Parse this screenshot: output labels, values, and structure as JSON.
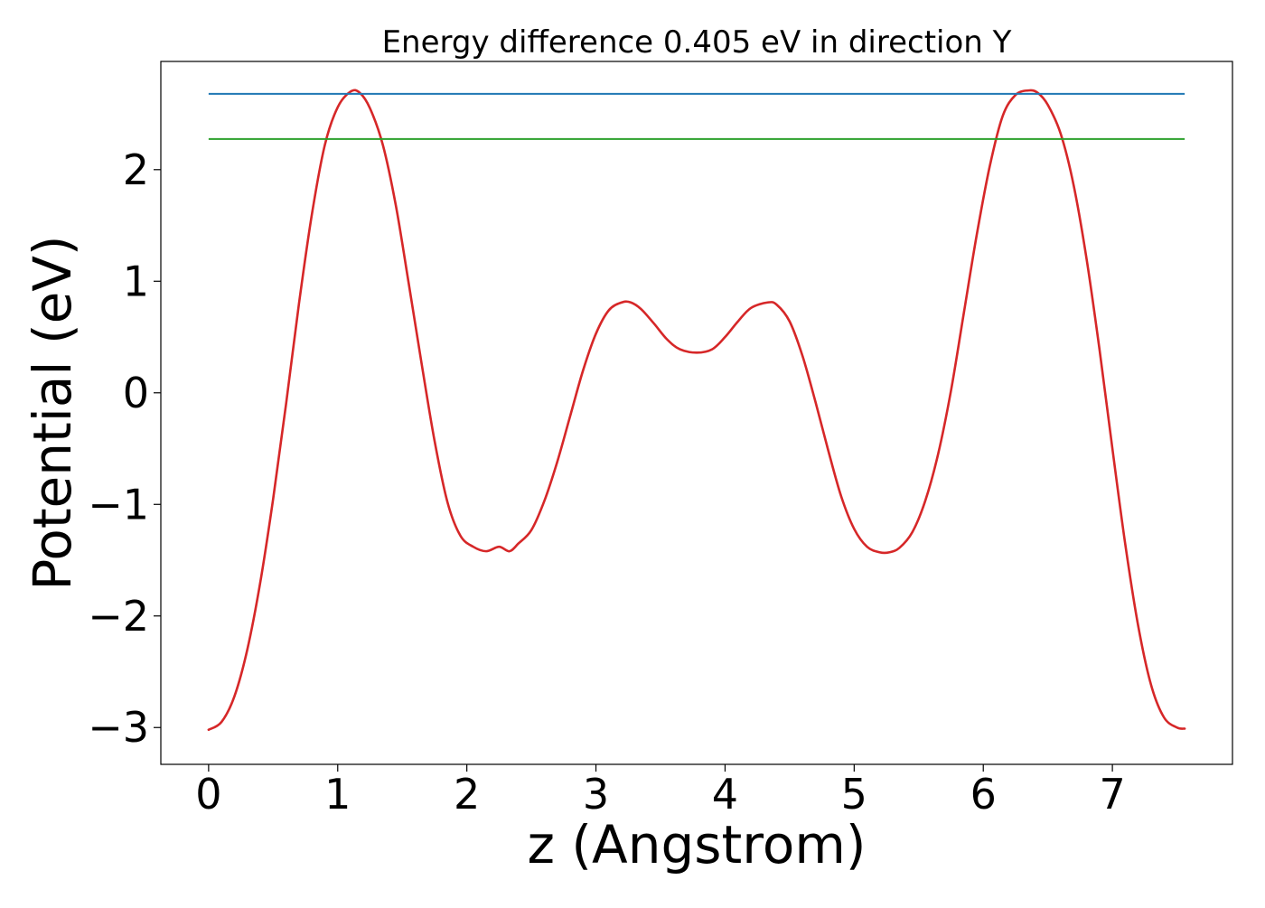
{
  "chart_data": {
    "type": "line",
    "title": "Energy difference 0.405 eV in direction Y",
    "xlabel": "z (Angstrom)",
    "ylabel": "Potential (eV)",
    "xlim": [
      -0.37,
      7.93
    ],
    "ylim": [
      -3.33,
      2.97
    ],
    "x_ticks": [
      0,
      1,
      2,
      3,
      4,
      5,
      6,
      7
    ],
    "x_tick_labels": [
      "0",
      "1",
      "2",
      "3",
      "4",
      "5",
      "6",
      "7"
    ],
    "y_ticks": [
      -3,
      -2,
      -1,
      0,
      1,
      2
    ],
    "y_tick_labels": [
      "−3",
      "−2",
      "−1",
      "0",
      "1",
      "2"
    ],
    "grid": false,
    "colors": {
      "potential": "#d62728",
      "max_line": "#1f77b4",
      "avg_line": "#2ca02c"
    },
    "series": [
      {
        "kind": "curve",
        "color": "#d62728",
        "x": [
          0,
          0.1,
          0.2,
          0.3,
          0.4,
          0.5,
          0.6,
          0.7,
          0.8,
          0.9,
          1.0,
          1.1,
          1.17,
          1.25,
          1.35,
          1.45,
          1.55,
          1.65,
          1.75,
          1.85,
          1.95,
          2.05,
          2.15,
          2.25,
          2.33,
          2.4,
          2.5,
          2.6,
          2.7,
          2.8,
          2.9,
          3.0,
          3.1,
          3.2,
          3.27,
          3.35,
          3.45,
          3.55,
          3.65,
          3.78,
          3.9,
          4.0,
          4.1,
          4.2,
          4.33,
          4.4,
          4.5,
          4.6,
          4.7,
          4.8,
          4.9,
          5.0,
          5.1,
          5.2,
          5.27,
          5.35,
          5.45,
          5.55,
          5.65,
          5.75,
          5.85,
          5.95,
          6.05,
          6.15,
          6.25,
          6.35,
          6.42,
          6.5,
          6.6,
          6.7,
          6.8,
          6.9,
          7.0,
          7.1,
          7.2,
          7.3,
          7.4,
          7.5,
          7.56
        ],
        "y": [
          -3.02,
          -2.95,
          -2.72,
          -2.3,
          -1.7,
          -0.95,
          -0.1,
          0.8,
          1.6,
          2.22,
          2.56,
          2.7,
          2.69,
          2.55,
          2.22,
          1.68,
          0.98,
          0.26,
          -0.43,
          -0.98,
          -1.28,
          -1.38,
          -1.42,
          -1.38,
          -1.42,
          -1.35,
          -1.23,
          -0.97,
          -0.62,
          -0.21,
          0.2,
          0.53,
          0.74,
          0.81,
          0.81,
          0.75,
          0.62,
          0.48,
          0.39,
          0.36,
          0.39,
          0.5,
          0.64,
          0.76,
          0.81,
          0.79,
          0.64,
          0.33,
          -0.08,
          -0.52,
          -0.93,
          -1.22,
          -1.38,
          -1.43,
          -1.43,
          -1.39,
          -1.25,
          -0.97,
          -0.55,
          0.02,
          0.72,
          1.42,
          2.03,
          2.48,
          2.67,
          2.71,
          2.69,
          2.58,
          2.32,
          1.86,
          1.2,
          0.39,
          -0.5,
          -1.36,
          -2.09,
          -2.62,
          -2.91,
          -3.0,
          -3.01
        ]
      },
      {
        "kind": "hline",
        "color": "#1f77b4",
        "x": [
          0,
          7.56
        ],
        "y": [
          2.68,
          2.68
        ]
      },
      {
        "kind": "hline",
        "color": "#2ca02c",
        "x": [
          0,
          7.56
        ],
        "y": [
          2.275,
          2.275
        ]
      }
    ]
  }
}
